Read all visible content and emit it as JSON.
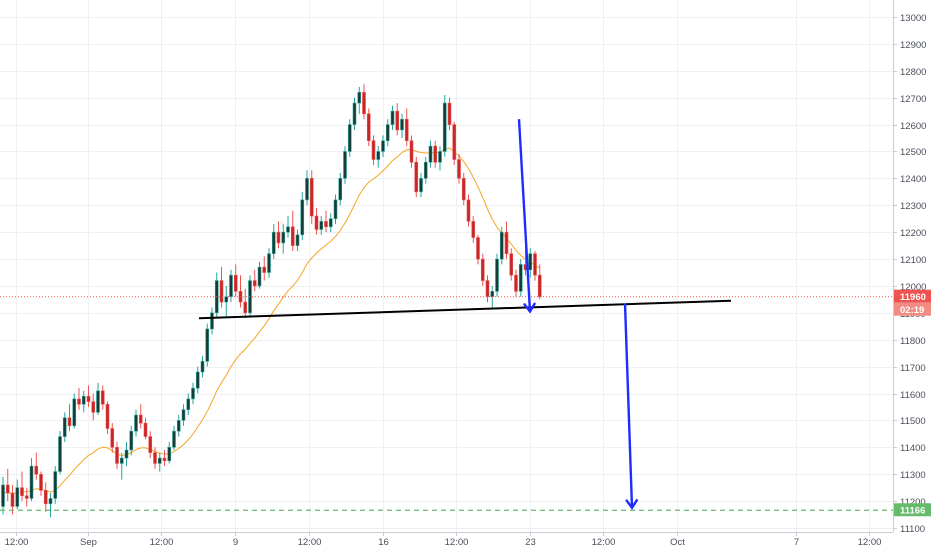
{
  "chart_data": {
    "type": "candlestick",
    "title": "",
    "xlabel": "",
    "ylabel": "",
    "ylim": [
      11100,
      13050
    ],
    "y_ticks": [
      11100,
      11200,
      11300,
      11400,
      11500,
      11600,
      11700,
      11800,
      11900,
      12000,
      12100,
      12200,
      12300,
      12400,
      12500,
      12600,
      12700,
      12800,
      12900,
      13000
    ],
    "x_ticks": [
      "12:00",
      "Sep",
      "12:00",
      "9",
      "12:00",
      "16",
      "12:00",
      "23",
      "12:00",
      "Oct",
      "7",
      "12:00"
    ],
    "grid": true,
    "colors": {
      "up": "#26a69a",
      "down": "#ef5350",
      "body_up": "#1b3a36",
      "body_down": "#c62828",
      "ma": "#f5a623",
      "neckline": "#000000",
      "arrow": "#1f2bff",
      "price_line": "#ef5350",
      "target_line": "#66bb6a"
    },
    "price_label": {
      "value": "11960",
      "countdown": "02:19"
    },
    "target_label": {
      "value": "11166"
    },
    "series": [
      {
        "name": "",
        "values": [
          [
            11180,
            11290,
            11150,
            11260
          ],
          [
            11260,
            11320,
            11200,
            11230
          ],
          [
            11230,
            11260,
            11150,
            11180
          ],
          [
            11180,
            11280,
            11170,
            11250
          ],
          [
            11250,
            11310,
            11200,
            11220
          ],
          [
            11220,
            11250,
            11180,
            11210
          ],
          [
            11210,
            11360,
            11200,
            11330
          ],
          [
            11330,
            11380,
            11280,
            11300
          ],
          [
            11300,
            11310,
            11220,
            11240
          ],
          [
            11240,
            11270,
            11160,
            11190
          ],
          [
            11190,
            11230,
            11140,
            11210
          ],
          [
            11210,
            11330,
            11190,
            11310
          ],
          [
            11310,
            11460,
            11300,
            11440
          ],
          [
            11440,
            11530,
            11420,
            11510
          ],
          [
            11510,
            11560,
            11460,
            11480
          ],
          [
            11480,
            11600,
            11470,
            11580
          ],
          [
            11580,
            11620,
            11540,
            11560
          ],
          [
            11560,
            11610,
            11530,
            11590
          ],
          [
            11590,
            11630,
            11550,
            11570
          ],
          [
            11570,
            11600,
            11500,
            11530
          ],
          [
            11530,
            11640,
            11520,
            11610
          ],
          [
            11610,
            11630,
            11540,
            11560
          ],
          [
            11560,
            11570,
            11450,
            11470
          ],
          [
            11470,
            11490,
            11380,
            11400
          ],
          [
            11400,
            11420,
            11320,
            11340
          ],
          [
            11340,
            11380,
            11280,
            11360
          ],
          [
            11360,
            11420,
            11330,
            11390
          ],
          [
            11390,
            11480,
            11370,
            11460
          ],
          [
            11460,
            11540,
            11440,
            11520
          ],
          [
            11520,
            11560,
            11470,
            11490
          ],
          [
            11490,
            11510,
            11430,
            11440
          ],
          [
            11440,
            11460,
            11360,
            11380
          ],
          [
            11380,
            11400,
            11320,
            11340
          ],
          [
            11340,
            11380,
            11310,
            11360
          ],
          [
            11360,
            11390,
            11330,
            11350
          ],
          [
            11350,
            11420,
            11340,
            11400
          ],
          [
            11400,
            11480,
            11390,
            11460
          ],
          [
            11460,
            11520,
            11440,
            11500
          ],
          [
            11500,
            11560,
            11480,
            11540
          ],
          [
            11540,
            11600,
            11520,
            11580
          ],
          [
            11580,
            11640,
            11560,
            11620
          ],
          [
            11620,
            11700,
            11600,
            11680
          ],
          [
            11680,
            11740,
            11660,
            11720
          ],
          [
            11720,
            11860,
            11700,
            11840
          ],
          [
            11840,
            11920,
            11820,
            11900
          ],
          [
            11900,
            12050,
            11880,
            12020
          ],
          [
            12020,
            12070,
            11920,
            11940
          ],
          [
            11940,
            12000,
            11880,
            11960
          ],
          [
            11960,
            12060,
            11940,
            12040
          ],
          [
            12040,
            12080,
            11960,
            11980
          ],
          [
            11980,
            12040,
            11920,
            11940
          ],
          [
            11940,
            11990,
            11880,
            11900
          ],
          [
            11900,
            12040,
            11890,
            12020
          ],
          [
            12020,
            12060,
            11980,
            12000
          ],
          [
            12000,
            12090,
            11990,
            12070
          ],
          [
            12070,
            12110,
            12020,
            12050
          ],
          [
            12050,
            12140,
            12030,
            12120
          ],
          [
            12120,
            12230,
            12100,
            12200
          ],
          [
            12200,
            12240,
            12140,
            12160
          ],
          [
            12160,
            12230,
            12120,
            12200
          ],
          [
            12200,
            12260,
            12180,
            12220
          ],
          [
            12220,
            12280,
            12130,
            12150
          ],
          [
            12150,
            12210,
            12130,
            12190
          ],
          [
            12190,
            12350,
            12170,
            12320
          ],
          [
            12320,
            12430,
            12300,
            12400
          ],
          [
            12400,
            12430,
            12230,
            12260
          ],
          [
            12260,
            12290,
            12190,
            12210
          ],
          [
            12210,
            12260,
            12190,
            12240
          ],
          [
            12240,
            12280,
            12200,
            12220
          ],
          [
            12220,
            12270,
            12200,
            12250
          ],
          [
            12250,
            12340,
            12230,
            12320
          ],
          [
            12320,
            12420,
            12300,
            12400
          ],
          [
            12400,
            12520,
            12380,
            12500
          ],
          [
            12500,
            12620,
            12480,
            12600
          ],
          [
            12600,
            12700,
            12580,
            12680
          ],
          [
            12680,
            12740,
            12640,
            12720
          ],
          [
            12720,
            12750,
            12620,
            12640
          ],
          [
            12640,
            12660,
            12520,
            12540
          ],
          [
            12540,
            12560,
            12450,
            12470
          ],
          [
            12470,
            12520,
            12440,
            12500
          ],
          [
            12500,
            12560,
            12480,
            12540
          ],
          [
            12540,
            12620,
            12520,
            12600
          ],
          [
            12600,
            12670,
            12580,
            12650
          ],
          [
            12650,
            12680,
            12560,
            12580
          ],
          [
            12580,
            12640,
            12550,
            12620
          ],
          [
            12620,
            12660,
            12520,
            12540
          ],
          [
            12540,
            12560,
            12440,
            12460
          ],
          [
            12460,
            12480,
            12330,
            12350
          ],
          [
            12350,
            12420,
            12330,
            12400
          ],
          [
            12400,
            12480,
            12380,
            12460
          ],
          [
            12460,
            12540,
            12440,
            12520
          ],
          [
            12520,
            12540,
            12440,
            12460
          ],
          [
            12460,
            12520,
            12430,
            12500
          ],
          [
            12500,
            12710,
            12480,
            12680
          ],
          [
            12680,
            12700,
            12580,
            12600
          ],
          [
            12600,
            12610,
            12450,
            12470
          ],
          [
            12470,
            12490,
            12380,
            12400
          ],
          [
            12400,
            12420,
            12300,
            12320
          ],
          [
            12320,
            12340,
            12220,
            12240
          ],
          [
            12240,
            12260,
            12160,
            12180
          ],
          [
            12180,
            12190,
            12080,
            12100
          ],
          [
            12100,
            12120,
            12000,
            12020
          ],
          [
            12020,
            12040,
            11940,
            11960
          ],
          [
            11960,
            12000,
            11920,
            11980
          ],
          [
            11980,
            12120,
            11960,
            12100
          ],
          [
            12100,
            12220,
            12080,
            12200
          ],
          [
            12200,
            12240,
            12100,
            12120
          ],
          [
            12120,
            12140,
            12020,
            12040
          ],
          [
            12040,
            12060,
            11960,
            11980
          ],
          [
            11980,
            12100,
            11960,
            12080
          ],
          [
            12080,
            12150,
            12040,
            12060
          ],
          [
            12060,
            12140,
            12030,
            12120
          ],
          [
            12120,
            12130,
            12020,
            12040
          ],
          [
            12040,
            12080,
            11950,
            11960
          ]
        ]
      },
      {
        "name": "",
        "values": [
          11230,
          11232,
          11228,
          11232,
          11236,
          11234,
          11240,
          11246,
          11244,
          11238,
          11234,
          11240,
          11256,
          11278,
          11296,
          11318,
          11336,
          11354,
          11370,
          11380,
          11394,
          11400,
          11398,
          11388,
          11374,
          11370,
          11372,
          11380,
          11392,
          11398,
          11398,
          11392,
          11384,
          11378,
          11374,
          11376,
          11384,
          11396,
          11410,
          11428,
          11450,
          11476,
          11502,
          11534,
          11570,
          11610,
          11640,
          11668,
          11700,
          11726,
          11748,
          11764,
          11786,
          11806,
          11830,
          11852,
          11878,
          11908,
          11932,
          11958,
          11982,
          12000,
          12020,
          12050,
          12082,
          12104,
          12122,
          12138,
          12152,
          12166,
          12184,
          12206,
          12234,
          12266,
          12302,
          12338,
          12366,
          12386,
          12398,
          12412,
          12428,
          12446,
          12466,
          12480,
          12496,
          12506,
          12508,
          12500,
          12496,
          12494,
          12496,
          12496,
          12496,
          12510,
          12512,
          12500,
          12484,
          12462,
          12436,
          12404,
          12368,
          12328,
          12286,
          12248,
          12218,
          12196,
          12178,
          12156,
          12132,
          12114,
          12098,
          12088,
          12078,
          12066
        ]
      }
    ],
    "annotations": {
      "neckline": {
        "from": {
          "bar": 59,
          "price": 11880
        },
        "to": {
          "bar": 165,
          "price": 11945
        }
      },
      "arrows": [
        {
          "from": {
            "bar": 109,
            "price": 12620
          },
          "to": {
            "bar": 112,
            "price": 11905
          }
        },
        {
          "from": {
            "bar": 132,
            "price": 11935
          },
          "to": {
            "bar": 135,
            "price": 11175
          }
        }
      ]
    }
  }
}
